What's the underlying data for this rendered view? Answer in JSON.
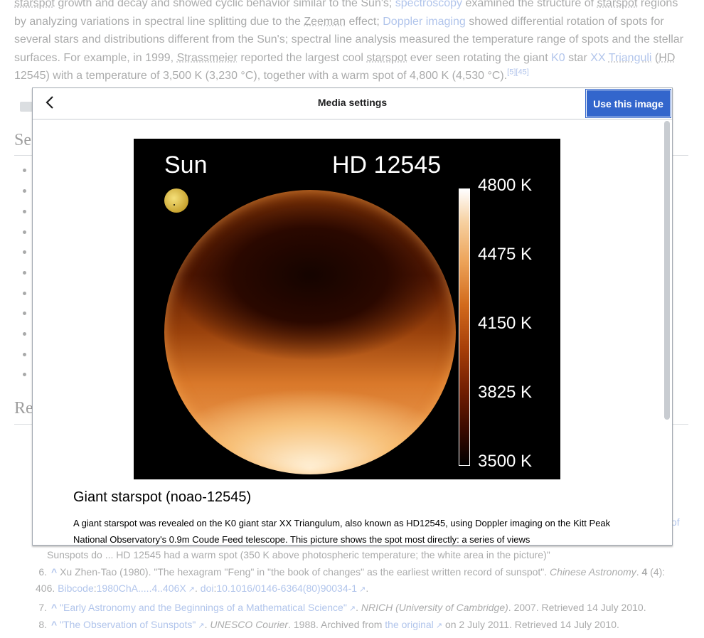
{
  "article": {
    "paragraph_segments": [
      {
        "t": "starspot",
        "cls": "dotted"
      },
      {
        "t": " growth and decay and showed cyclic behavior similar to the Sun's; "
      },
      {
        "t": "spectroscopy",
        "cls": "link"
      },
      {
        "t": " examined the structure of "
      },
      {
        "t": "starspot",
        "cls": "dotted"
      },
      {
        "t": " regions by analyzing variations in spectral line splitting due to the "
      },
      {
        "t": "Zeeman",
        "cls": "dotted"
      },
      {
        "t": " effect; "
      },
      {
        "t": "Doppler imaging",
        "cls": "link"
      },
      {
        "t": " showed differential rotation of spots for several stars and distributions different from the Sun's; spectral line analysis measured the temperature range of spots and the stellar surfaces. For example, in 1999, "
      },
      {
        "t": "Strassmeier",
        "cls": "dotted"
      },
      {
        "t": " reported the largest cool "
      },
      {
        "t": "starspot",
        "cls": "dotted"
      },
      {
        "t": " ever seen rotating the giant "
      },
      {
        "t": "K0",
        "cls": "link"
      },
      {
        "t": " star "
      },
      {
        "t": "XX",
        "cls": "link"
      },
      {
        "t": " "
      },
      {
        "t": "Trianguli",
        "cls": "link dotted"
      },
      {
        "t": " ("
      },
      {
        "t": "HD",
        "cls": "dotted"
      },
      {
        "t": " 12545) with a temperature of 3,500 K (3,230 °C), together with a warm spot of 4,800 K (4,530 °C)."
      },
      {
        "t": "[5][45]",
        "cls": "link sup"
      }
    ],
    "section1_stub": "Se",
    "section2_stub": "Re",
    "right_link_stub": "of",
    "ref5_tail": "Sunspots do ... HD 12545 had a warm spot (350 K above photospheric temperature; the white area in the picture)\"",
    "references": [
      {
        "num": "6.",
        "caret": "^",
        "parts": [
          {
            "t": " Xu Zhen-Tao (1980). \"The hexagram \"Feng\" in \"the book of changes\" as the earliest written record of sunspot\". "
          },
          {
            "t": "Chinese Astronomy",
            "cls": "it"
          },
          {
            "t": ". "
          },
          {
            "t": "4",
            "cls": "b"
          },
          {
            "t": " (4): 406. "
          },
          {
            "t": "Bibcode",
            "cls": "link"
          },
          {
            "t": ":"
          },
          {
            "t": "1980ChA.....4..406X",
            "cls": "link"
          },
          {
            "t": " ↗",
            "cls": "ext"
          },
          {
            "t": ". "
          },
          {
            "t": "doi",
            "cls": "link"
          },
          {
            "t": ":"
          },
          {
            "t": "10.1016/0146-6364(80)90034-1",
            "cls": "link"
          },
          {
            "t": " ↗",
            "cls": "ext"
          },
          {
            "t": "."
          }
        ]
      },
      {
        "num": "7.",
        "caret": "^",
        "parts": [
          {
            "t": " "
          },
          {
            "t": "\"Early Astronomy and the Beginnings of a Mathematical Science\"",
            "cls": "link"
          },
          {
            "t": " ↗",
            "cls": "ext"
          },
          {
            "t": ". "
          },
          {
            "t": "NRICH (University of Cambridge)",
            "cls": "it"
          },
          {
            "t": ". 2007. Retrieved 14 July 2010."
          }
        ]
      },
      {
        "num": "8.",
        "caret": "^",
        "parts": [
          {
            "t": " "
          },
          {
            "t": "\"The Observation of Sunspots\"",
            "cls": "link"
          },
          {
            "t": " ↗",
            "cls": "ext"
          },
          {
            "t": ". "
          },
          {
            "t": "UNESCO Courier",
            "cls": "it"
          },
          {
            "t": ". 1988. Archived from "
          },
          {
            "t": "the original",
            "cls": "link"
          },
          {
            "t": " ↗",
            "cls": "ext"
          },
          {
            "t": " on 2 July 2011. Retrieved 14 July 2010."
          }
        ]
      }
    ]
  },
  "dialog": {
    "title": "Media settings",
    "back_icon": "chevron-left-icon",
    "use_button": "Use this image",
    "image": {
      "label_left": "Sun",
      "label_right": "HD 12545",
      "colorbar_labels": [
        "4800 K",
        "4475 K",
        "4150 K",
        "3825 K",
        "3500 K"
      ]
    },
    "caption_title": "Giant starspot (noao-12545)",
    "caption_text": "A giant starspot was revealed on the K0 giant star XX Triangulum, also known as HD12545, using Doppler imaging on the Kitt Peak National Observatory's 0.9m Coude Feed telescope. This picture shows the spot most directly: a series of views"
  },
  "colors": {
    "link": "#3366cc",
    "primary_button": "#3366cc",
    "border": "#a2a9b1"
  }
}
